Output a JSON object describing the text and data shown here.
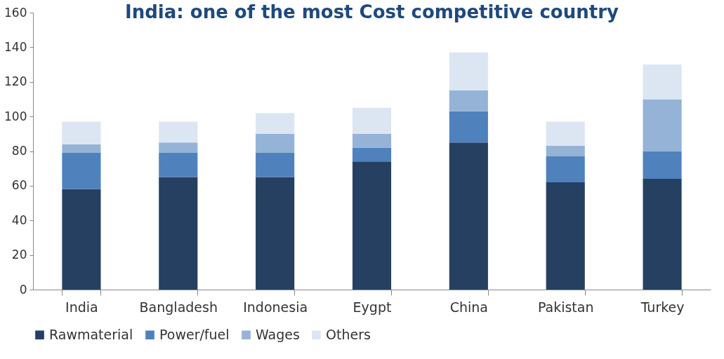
{
  "chart_data": {
    "type": "bar",
    "title": "India: one of the most Cost competitive country",
    "stacked": true,
    "categories": [
      "India",
      "Bangladesh",
      "Indonesia",
      "Eygpt",
      "China",
      "Pakistan",
      "Turkey"
    ],
    "series": [
      {
        "name": "Rawmaterial",
        "color": "#264061",
        "values": [
          58,
          65,
          65,
          74,
          85,
          62,
          64
        ]
      },
      {
        "name": "Power/fuel",
        "color": "#4f81bd",
        "values": [
          21,
          14,
          14,
          8,
          18,
          15,
          16
        ]
      },
      {
        "name": "Wages",
        "color": "#95b3d7",
        "values": [
          5,
          6,
          11,
          8,
          12,
          6,
          30
        ]
      },
      {
        "name": "Others",
        "color": "#dce6f2",
        "values": [
          13,
          12,
          12,
          15,
          22,
          14,
          20
        ]
      }
    ],
    "ylim": [
      0,
      160
    ],
    "yticks": [
      0,
      20,
      40,
      60,
      80,
      100,
      120,
      140,
      160
    ],
    "grid": false,
    "legend": "bottom"
  }
}
